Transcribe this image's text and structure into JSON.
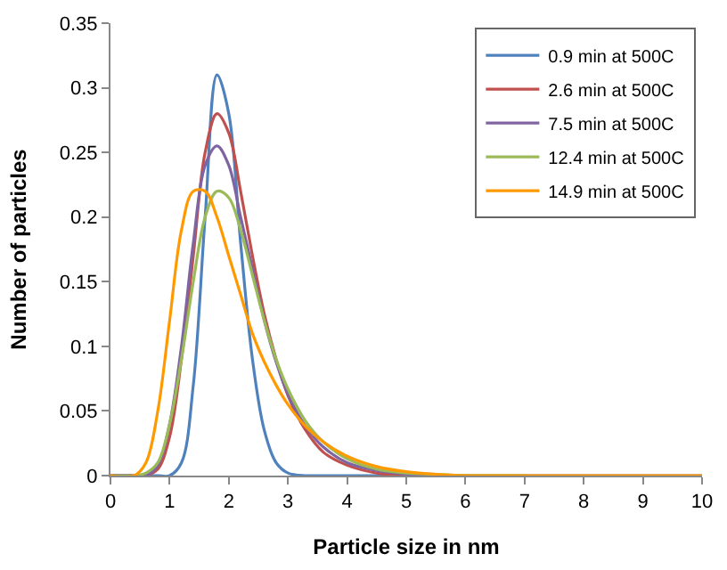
{
  "chart_data": {
    "type": "line",
    "xlabel": "Particle size in nm",
    "ylabel": "Number of particles",
    "x": [
      0,
      0.4,
      0.6,
      0.8,
      1.0,
      1.2,
      1.4,
      1.6,
      1.8,
      2.0,
      2.2,
      2.4,
      2.6,
      2.8,
      3.0,
      3.3,
      3.6,
      4.0,
      4.5,
      5.0,
      5.5,
      6,
      7,
      8,
      9,
      10
    ],
    "series": [
      {
        "name": "0.9 min at 500C",
        "color": "#4f81bd",
        "values": [
          0,
          0,
          0,
          0,
          0,
          0.01,
          0.07,
          0.2,
          0.31,
          0.28,
          0.18,
          0.09,
          0.035,
          0.01,
          0.002,
          0,
          0,
          0,
          0,
          0,
          null,
          null,
          null,
          null,
          null,
          null
        ]
      },
      {
        "name": "2.6 min at 500C",
        "color": "#c0504d",
        "values": [
          0,
          0,
          0,
          0.005,
          0.03,
          0.09,
          0.17,
          0.25,
          0.28,
          0.265,
          0.22,
          0.17,
          0.125,
          0.09,
          0.062,
          0.035,
          0.018,
          0.008,
          0.002,
          0,
          0,
          null,
          null,
          null,
          null,
          null
        ]
      },
      {
        "name": "7.5 min at 500C",
        "color": "#8064a2",
        "values": [
          0,
          0,
          0,
          0.008,
          0.04,
          0.1,
          0.18,
          0.24,
          0.255,
          0.24,
          0.2,
          0.16,
          0.12,
          0.088,
          0.063,
          0.038,
          0.022,
          0.01,
          0.004,
          0.001,
          0,
          0,
          0,
          0,
          0,
          0
        ]
      },
      {
        "name": "12.4 min at 500C",
        "color": "#9bbb59",
        "values": [
          0,
          0,
          0.002,
          0.01,
          0.04,
          0.09,
          0.15,
          0.2,
          0.22,
          0.215,
          0.19,
          0.155,
          0.12,
          0.09,
          0.067,
          0.042,
          0.026,
          0.013,
          0.005,
          0.002,
          0.001,
          0,
          0,
          null,
          null,
          null
        ]
      },
      {
        "name": "14.9 min at 500C",
        "color": "#ff9900",
        "values": [
          0,
          0,
          0.01,
          0.05,
          0.12,
          0.19,
          0.22,
          0.22,
          0.2,
          0.17,
          0.14,
          0.11,
          0.088,
          0.07,
          0.055,
          0.038,
          0.026,
          0.015,
          0.007,
          0.003,
          0.001,
          0,
          0,
          0,
          0,
          0
        ]
      }
    ],
    "xlim": [
      0,
      10
    ],
    "xticks": [
      0,
      1,
      2,
      3,
      4,
      5,
      6,
      7,
      8,
      9,
      10
    ],
    "ylim": [
      0,
      0.35
    ],
    "yticks": [
      {
        "value": 0,
        "label": "0"
      },
      {
        "value": 0.05,
        "label": "0.05"
      },
      {
        "value": 0.1,
        "label": "0.1"
      },
      {
        "value": 0.15,
        "label": "0.15"
      },
      {
        "value": 0.2,
        "label": "0.2"
      },
      {
        "value": 0.25,
        "label": "0.25"
      },
      {
        "value": 0.3,
        "label": "0.3"
      },
      {
        "value": 0.35,
        "label": "0.35"
      }
    ],
    "legend": "top right",
    "marker": "none",
    "line_style": "solid"
  }
}
